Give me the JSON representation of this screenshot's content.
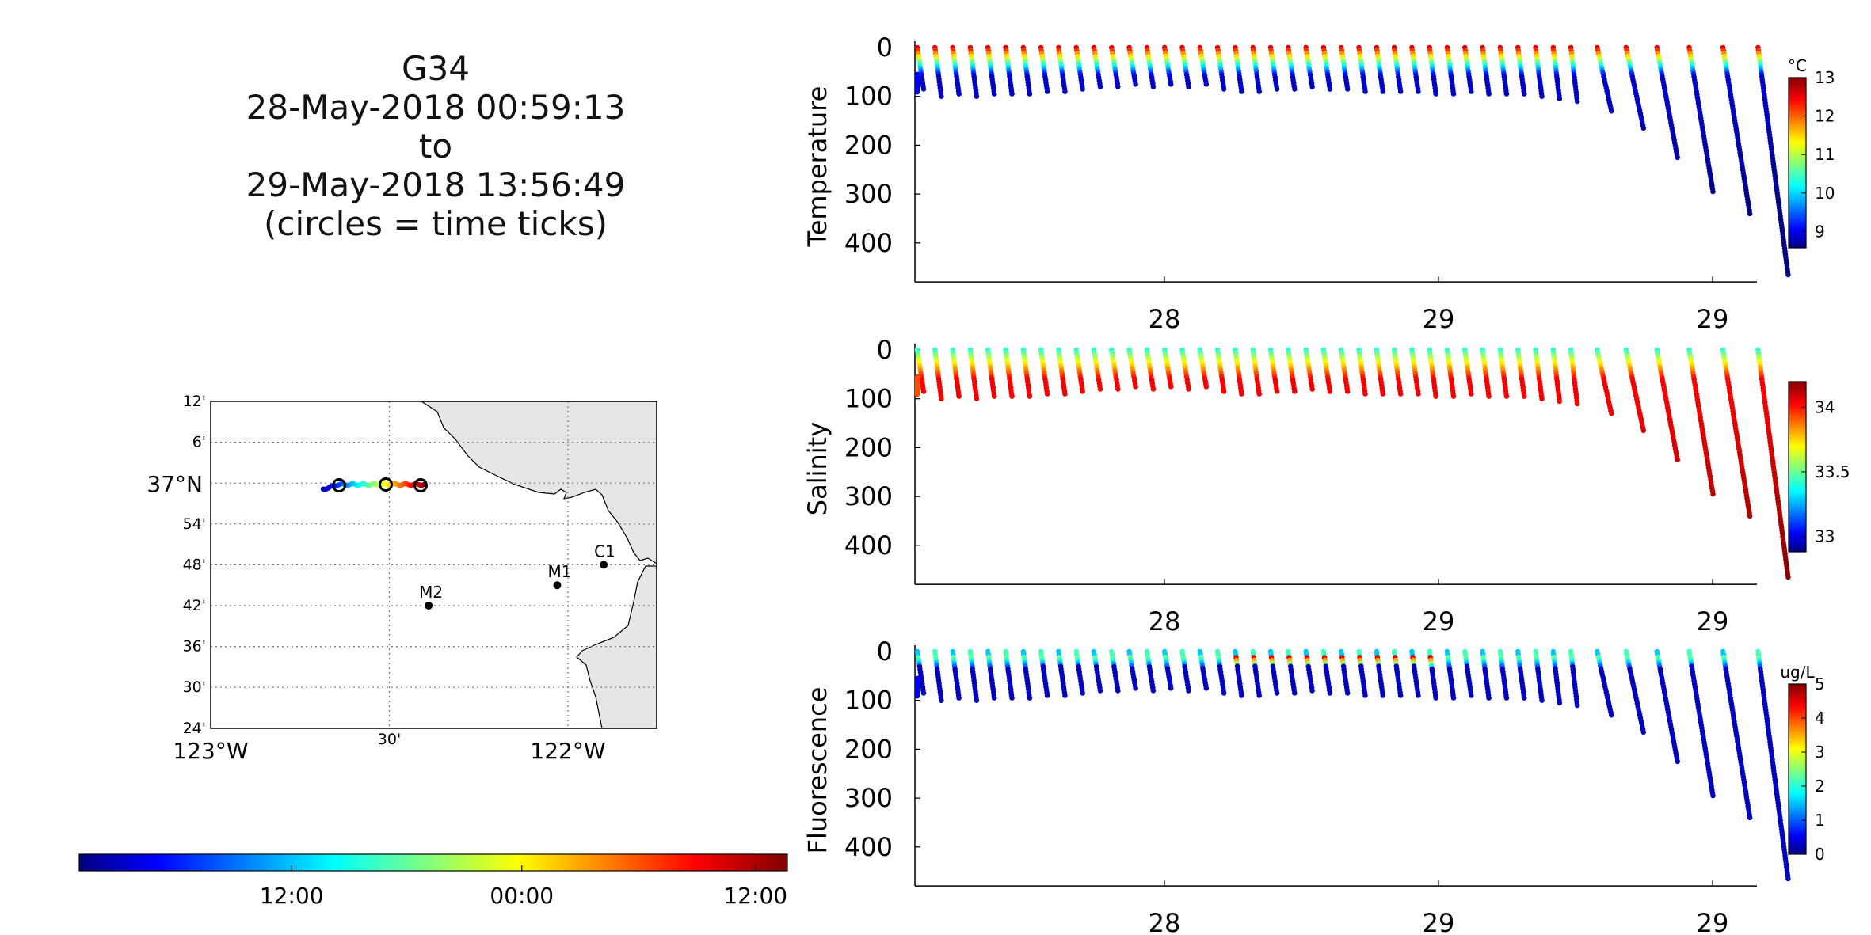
{
  "title": {
    "lines": [
      "G34",
      "28-May-2018 00:59:13",
      "to",
      "29-May-2018 13:56:49",
      "(circles = time ticks)"
    ]
  },
  "map": {
    "lat_ticks": [
      "12'",
      "6'",
      "37°N",
      "54'",
      "48'",
      "42'",
      "36'",
      "30'",
      "24'"
    ],
    "lon_ticks": [
      "123°W",
      "30'",
      "122°W"
    ],
    "stations": [
      {
        "name": "M2",
        "lon": -122.39,
        "lat": 36.7
      },
      {
        "name": "M1",
        "lon": -122.03,
        "lat": 36.75
      },
      {
        "name": "C1",
        "lon": -121.9,
        "lat": 36.8
      }
    ],
    "colors": {
      "land": "#e6e6e6",
      "grid": "#777777"
    }
  },
  "time_colorbar": {
    "tick_labels": [
      "12:00",
      "00:00",
      "12:00"
    ],
    "tick_fractions": [
      0.3,
      0.625,
      0.955
    ],
    "colormap": "jet"
  },
  "panels": [
    {
      "ylabel": "Temperature",
      "yticks": [
        "0",
        "100",
        "200",
        "300",
        "400"
      ],
      "xticks": [
        "28",
        "29",
        "29"
      ],
      "colorbar": {
        "unit": "°C",
        "ticks": [
          "13",
          "12",
          "11",
          "10",
          "9"
        ]
      }
    },
    {
      "ylabel": "Salinity",
      "yticks": [
        "0",
        "100",
        "200",
        "300",
        "400"
      ],
      "xticks": [
        "28",
        "29",
        "29"
      ],
      "colorbar": {
        "unit": "",
        "ticks": [
          "34",
          "33.5",
          "33"
        ]
      }
    },
    {
      "ylabel": "Fluorescence",
      "yticks": [
        "0",
        "100",
        "200",
        "300",
        "400"
      ],
      "xticks": [
        "28",
        "29",
        "29"
      ],
      "colorbar": {
        "unit": "ug/L",
        "ticks": [
          "5",
          "4",
          "3",
          "2",
          "1",
          "0"
        ]
      }
    }
  ],
  "chart_data": [
    {
      "type": "scatter",
      "description_of_axes": "Glider dive profiles: x = time (day of May 2018), y = depth (increasing downward), colour = variable value",
      "x_unit": "day",
      "ylim": [
        0,
        480
      ],
      "profiles_max_depth": [
        85,
        100,
        95,
        100,
        95,
        95,
        95,
        90,
        90,
        85,
        80,
        80,
        75,
        80,
        75,
        80,
        75,
        85,
        90,
        90,
        85,
        85,
        80,
        85,
        85,
        90,
        90,
        90,
        90,
        95,
        95,
        90,
        95,
        95,
        95,
        100,
        105,
        110,
        130,
        165,
        225,
        295,
        340,
        465
      ],
      "panels": [
        {
          "variable": "Temperature",
          "unit": "°C",
          "clim": [
            8.6,
            13
          ],
          "surface_value": 12.6,
          "deep_value": 8.9
        },
        {
          "variable": "Salinity",
          "unit": "",
          "clim": [
            32.9,
            34.2
          ],
          "surface_value": 33.45,
          "deep_value": 34.05
        },
        {
          "variable": "Fluorescence",
          "unit": "ug/L",
          "clim": [
            0,
            5
          ],
          "surface_value": 1.6,
          "deep_value": 0.3
        }
      ]
    }
  ]
}
